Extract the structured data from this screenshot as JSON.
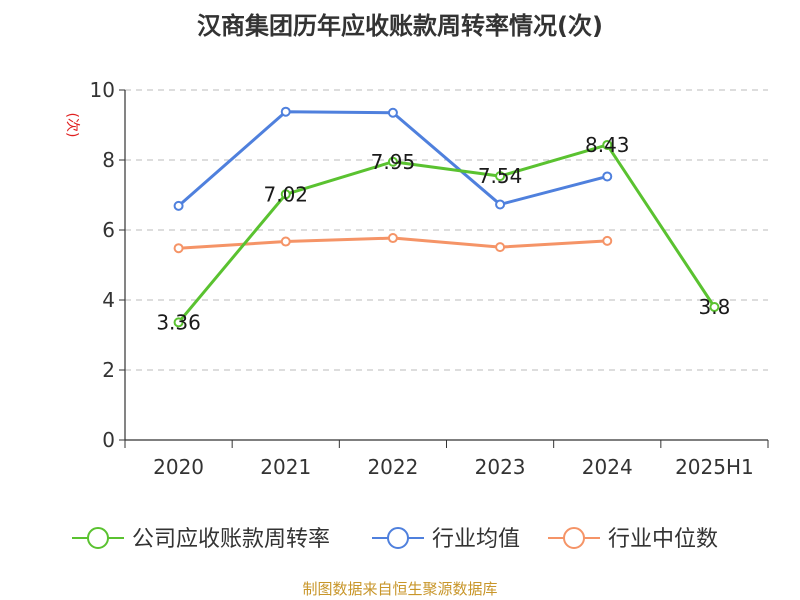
{
  "chart_data": {
    "type": "line",
    "title": "汉商集团历年应收账款周转率情况(次)",
    "ylabel": "(次)",
    "xlabel": "",
    "categories": [
      "2020",
      "2021",
      "2022",
      "2023",
      "2024",
      "2025H1"
    ],
    "ylim": [
      0,
      10
    ],
    "yticks": [
      0,
      2,
      4,
      6,
      8,
      10
    ],
    "grid": true,
    "legend_position": "bottom",
    "series": [
      {
        "name": "公司应收账款周转率",
        "color": "#5ac230",
        "values": [
          3.36,
          7.02,
          7.95,
          7.54,
          8.43,
          3.8
        ],
        "labels": [
          "3.36",
          "7.02",
          "7.95",
          "7.54",
          "8.43",
          "3.8"
        ]
      },
      {
        "name": "行业均值",
        "color": "#4f80dd",
        "values": [
          6.69,
          9.38,
          9.35,
          6.73,
          7.53,
          null
        ]
      },
      {
        "name": "行业中位数",
        "color": "#f59467",
        "values": [
          5.48,
          5.67,
          5.77,
          5.51,
          5.69,
          null
        ]
      }
    ]
  },
  "source": "制图数据来自恒生聚源数据库"
}
